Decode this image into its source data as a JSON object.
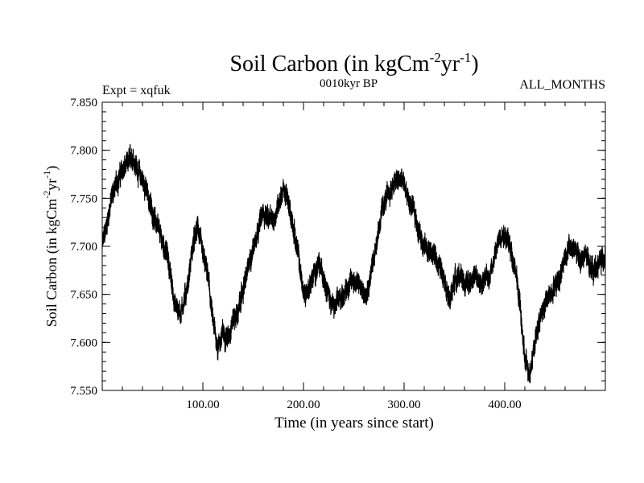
{
  "title": {
    "main": "Soil Carbon (in kgCm",
    "sup1": "-2",
    "mid": "yr",
    "sup2": "-1",
    "close": ")"
  },
  "subtitle_left": "Expt = xqfuk",
  "subtitle_center": "0010kyr BP",
  "subtitle_right": "ALL_MONTHS",
  "ylabel": {
    "main": "Soil Carbon (in kgCm",
    "sup1": "-2",
    "mid": "yr",
    "sup2": "-1",
    "close": ")"
  },
  "chart_data": {
    "type": "line",
    "title": "Soil Carbon (in kgCm-2yr-1)",
    "xlabel": "Time (in years since start)",
    "ylabel": "Soil Carbon (in kgCm-2yr-1)",
    "xlim": [
      0,
      500
    ],
    "ylim": [
      7.55,
      7.85
    ],
    "x_ticks": [
      100,
      200,
      300,
      400
    ],
    "x_tick_labels": [
      "100.00",
      "200.00",
      "300.00",
      "400.00"
    ],
    "y_ticks": [
      7.55,
      7.6,
      7.65,
      7.7,
      7.75,
      7.8,
      7.85
    ],
    "y_tick_labels": [
      "7.550",
      "7.600",
      "7.650",
      "7.700",
      "7.750",
      "7.800",
      "7.850"
    ],
    "noise_amplitude": 0.012,
    "series": [
      {
        "name": "Soil Carbon",
        "color": "#000000",
        "x": [
          0,
          5,
          10,
          18,
          25,
          30,
          35,
          42,
          50,
          58,
          65,
          72,
          78,
          85,
          90,
          95,
          100,
          105,
          110,
          115,
          120,
          125,
          130,
          135,
          140,
          148,
          155,
          160,
          165,
          170,
          175,
          180,
          185,
          190,
          195,
          200,
          205,
          210,
          215,
          220,
          225,
          230,
          235,
          240,
          245,
          250,
          255,
          260,
          265,
          270,
          275,
          280,
          285,
          290,
          295,
          300,
          305,
          310,
          315,
          320,
          325,
          330,
          335,
          340,
          345,
          350,
          355,
          360,
          365,
          370,
          375,
          380,
          385,
          390,
          395,
          400,
          405,
          410,
          415,
          420,
          425,
          430,
          435,
          440,
          445,
          450,
          455,
          460,
          465,
          470,
          475,
          480,
          485,
          490,
          495,
          500
        ],
        "values": [
          7.7,
          7.725,
          7.755,
          7.775,
          7.785,
          7.795,
          7.78,
          7.765,
          7.735,
          7.71,
          7.69,
          7.64,
          7.63,
          7.66,
          7.7,
          7.72,
          7.69,
          7.67,
          7.62,
          7.595,
          7.61,
          7.605,
          7.625,
          7.63,
          7.655,
          7.69,
          7.72,
          7.735,
          7.73,
          7.725,
          7.745,
          7.76,
          7.745,
          7.72,
          7.69,
          7.65,
          7.655,
          7.67,
          7.68,
          7.67,
          7.65,
          7.635,
          7.645,
          7.65,
          7.66,
          7.665,
          7.66,
          7.65,
          7.66,
          7.69,
          7.72,
          7.745,
          7.755,
          7.765,
          7.77,
          7.765,
          7.745,
          7.735,
          7.715,
          7.7,
          7.695,
          7.69,
          7.68,
          7.67,
          7.64,
          7.665,
          7.67,
          7.66,
          7.665,
          7.67,
          7.66,
          7.665,
          7.67,
          7.69,
          7.71,
          7.715,
          7.7,
          7.68,
          7.64,
          7.58,
          7.57,
          7.6,
          7.625,
          7.64,
          7.65,
          7.66,
          7.67,
          7.69,
          7.7,
          7.695,
          7.685,
          7.69,
          7.68,
          7.675,
          7.685,
          7.69
        ]
      }
    ]
  }
}
